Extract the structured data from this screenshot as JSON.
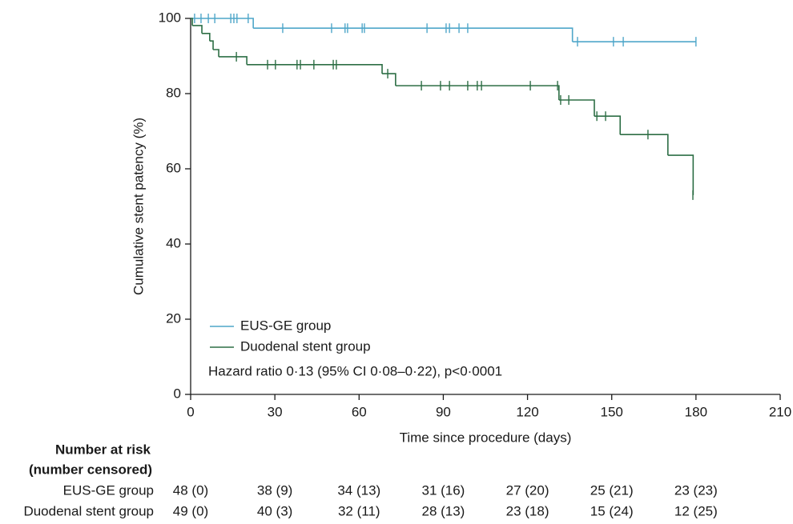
{
  "chart_data": {
    "type": "step",
    "xlabel": "Time since procedure (days)",
    "ylabel": "Cumulative stent patency (%)",
    "annotation": "Hazard ratio 0·13 (95% CI 0·08–0·22), p<0·0001",
    "xlim": [
      0,
      210
    ],
    "xticks": [
      0,
      30,
      60,
      90,
      120,
      150,
      180,
      210
    ],
    "ylim": [
      0,
      100
    ],
    "yticks": [
      0,
      20,
      40,
      60,
      80,
      100
    ],
    "legend": "lower left",
    "series": [
      {
        "name": "EUS-GE group",
        "color": "#4fa6c9",
        "x": [
          0,
          22.3,
          136,
          180
        ],
        "y": [
          100,
          97.4,
          93.8,
          93.8
        ],
        "censored_x": [
          1.4,
          3.7,
          6.3,
          8.6,
          14.3,
          15.4,
          16.5,
          20.5,
          32.8,
          50.2,
          55,
          55.9,
          61.1,
          61.9,
          84.2,
          91,
          92.2,
          95.6,
          98.7,
          137.8,
          150.6,
          154.1,
          180
        ],
        "censored_y": [
          100,
          100,
          100,
          100,
          100,
          100,
          100,
          100,
          97.4,
          97.4,
          97.4,
          97.4,
          97.4,
          97.4,
          97.4,
          97.4,
          97.4,
          97.4,
          97.4,
          93.8,
          93.8,
          93.8,
          93.8
        ]
      },
      {
        "name": "Duodenal stent group",
        "color": "#2d6e45",
        "x": [
          0,
          0.6,
          4,
          6.8,
          8,
          10,
          20,
          68.2,
          73,
          131.2,
          143.8,
          153,
          170,
          179
        ],
        "y": [
          100,
          98.1,
          96,
          94,
          91.7,
          89.8,
          87.7,
          85.3,
          82.1,
          78.3,
          74,
          69.1,
          63.6,
          53
        ],
        "censored_x": [
          16.3,
          27.4,
          30.2,
          37.9,
          39.1,
          43.9,
          50.8,
          51.9,
          70.2,
          82.2,
          89,
          92.2,
          98.7,
          102.1,
          103.6,
          121,
          130.7,
          131.8,
          134.7,
          144.7,
          147.8,
          162.9,
          178.9
        ],
        "censored_y": [
          89.8,
          87.7,
          87.7,
          87.7,
          87.7,
          87.7,
          87.7,
          87.7,
          85.3,
          82.1,
          82.1,
          82.1,
          82.1,
          82.1,
          82.1,
          82.1,
          82.1,
          78.3,
          78.3,
          74,
          74,
          69.1,
          53
        ]
      }
    ]
  },
  "risk_table": {
    "title": [
      "Number at risk",
      "(number censored)"
    ],
    "rows": [
      {
        "label": "EUS-GE group",
        "cells": [
          "48 (0)",
          "38 (9)",
          "34 (13)",
          "31 (16)",
          "27 (20)",
          "25 (21)",
          "23 (23)"
        ]
      },
      {
        "label": "Duodenal stent group",
        "cells": [
          "49 (0)",
          "40 (3)",
          "32 (11)",
          "28 (13)",
          "23 (18)",
          "15 (24)",
          "12 (25)"
        ]
      }
    ]
  }
}
